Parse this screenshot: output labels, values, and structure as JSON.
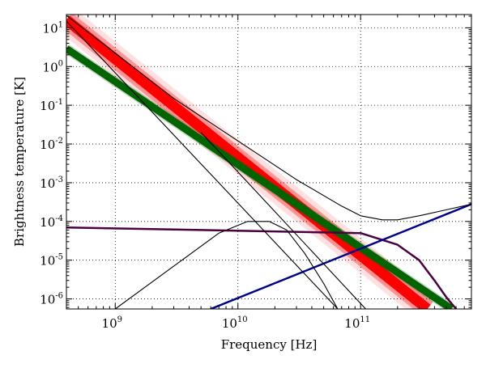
{
  "chart_data": {
    "type": "line",
    "title": "",
    "xlabel": "Frequency [Hz]",
    "ylabel": "Brightness temperature [K]",
    "xscale": "log",
    "yscale": "log",
    "xlim": [
      400000000,
      800000000000
    ],
    "ylim": [
      5.5e-07,
      22
    ],
    "grid": true,
    "xticks": [
      {
        "value": 1000000000,
        "base": "10",
        "exp": "9"
      },
      {
        "value": 10000000000,
        "base": "10",
        "exp": "10"
      },
      {
        "value": 100000000000,
        "base": "10",
        "exp": "11"
      }
    ],
    "yticks": [
      {
        "value": 10,
        "base": "10",
        "exp": "1"
      },
      {
        "value": 1,
        "base": "10",
        "exp": "0"
      },
      {
        "value": 0.1,
        "base": "10",
        "exp": "-1"
      },
      {
        "value": 0.01,
        "base": "10",
        "exp": "-2"
      },
      {
        "value": 0.001,
        "base": "10",
        "exp": "-3"
      },
      {
        "value": 0.0001,
        "base": "10",
        "exp": "-4"
      },
      {
        "value": 1e-05,
        "base": "10",
        "exp": "-5"
      },
      {
        "value": 1e-06,
        "base": "10",
        "exp": "-6"
      }
    ],
    "series": [
      {
        "color": "#ff0000",
        "band": true,
        "kind": "power-law-band",
        "x": [
          400000000,
          350000000000
        ],
        "y": [
          16,
          5.5e-07
        ]
      },
      {
        "color": "#006400",
        "band": true,
        "kind": "power-law-band",
        "x": [
          400000000,
          550000000000
        ],
        "y": [
          2.9,
          5.5e-07
        ]
      },
      {
        "color": "#4b0040",
        "band": false,
        "kind": "flat-cutoff",
        "x": [
          400000000,
          100000000000,
          200000000000,
          300000000000,
          400000000000,
          500000000000,
          600000000000
        ],
        "y": [
          7e-05,
          5e-05,
          2.5e-05,
          1e-05,
          3e-06,
          1.1e-06,
          5.5e-07
        ]
      },
      {
        "color": "#00008b",
        "band": false,
        "kind": "rising-power-law",
        "x": [
          6000000000,
          800000000000
        ],
        "y": [
          5.5e-07,
          0.00028
        ]
      },
      {
        "color": "#000000",
        "band": false,
        "kind": "total",
        "x": [
          400000000,
          3000000000,
          10000000000,
          30000000000,
          70000000000,
          100000000000,
          150000000000,
          200000000000,
          300000000000,
          500000000000,
          800000000000
        ],
        "y": [
          21,
          0.15,
          0.012,
          0.0012,
          0.00025,
          0.00014,
          0.00011,
          0.00011,
          0.00014,
          0.0002,
          0.00028
        ]
      },
      {
        "color": "#000000",
        "band": false,
        "kind": "steep-power-law",
        "x": [
          400000000,
          65000000000
        ],
        "y": [
          15,
          5.5e-07
        ]
      },
      {
        "color": "#000000",
        "band": false,
        "kind": "peaked",
        "x": [
          1000000000,
          3000000000,
          7000000000,
          12000000000,
          18000000000,
          25000000000,
          35000000000,
          50000000000,
          65000000000
        ],
        "y": [
          5.5e-07,
          7e-06,
          5e-05,
          0.0001,
          0.0001,
          6e-05,
          1.5e-05,
          2.5e-06,
          5.5e-07
        ]
      },
      {
        "color": "#000000",
        "band": false,
        "kind": "steep-power-law",
        "x": [
          5000000000,
          110000000000
        ],
        "y": [
          0.02,
          5.5e-07
        ]
      }
    ]
  }
}
